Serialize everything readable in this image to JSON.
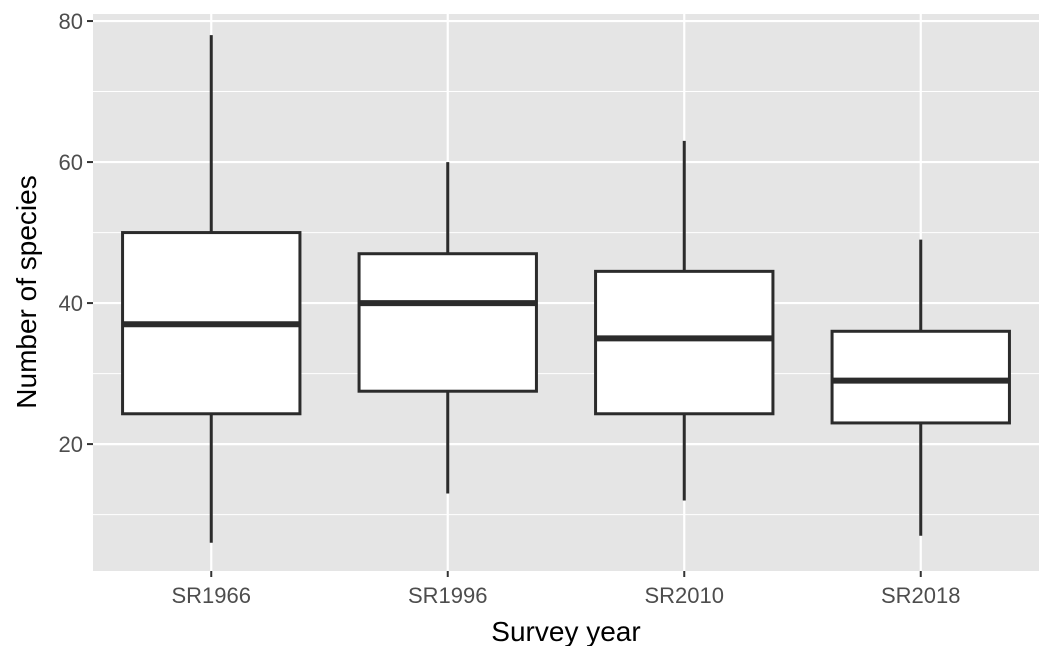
{
  "chart_data": {
    "type": "box",
    "title": "",
    "xlabel": "Survey year",
    "ylabel": "Number of species",
    "ylim": [
      2,
      81
    ],
    "y_ticks": [
      20,
      40,
      60,
      80
    ],
    "y_minor_ticks": [
      10,
      30,
      50,
      70
    ],
    "grid": true,
    "legend": "none",
    "colors": {
      "panel_background": "#e5e5e5",
      "grid": "#ffffff",
      "box_fill": "#ffffff",
      "box_stroke": "#2b2b2b",
      "tick_text": "#4d4d4d",
      "axis_title": "#000000"
    },
    "categories": [
      "SR1966",
      "SR1996",
      "SR2010",
      "SR2018"
    ],
    "boxes": [
      {
        "category": "SR1966",
        "min": 6,
        "q1": 24.3,
        "median": 37,
        "q3": 50,
        "max": 78
      },
      {
        "category": "SR1996",
        "min": 13,
        "q1": 27.5,
        "median": 40,
        "q3": 47,
        "max": 60
      },
      {
        "category": "SR2010",
        "min": 12,
        "q1": 24.3,
        "median": 35,
        "q3": 44.5,
        "max": 63
      },
      {
        "category": "SR2018",
        "min": 7,
        "q1": 23,
        "median": 29,
        "q3": 36,
        "max": 49
      }
    ]
  }
}
